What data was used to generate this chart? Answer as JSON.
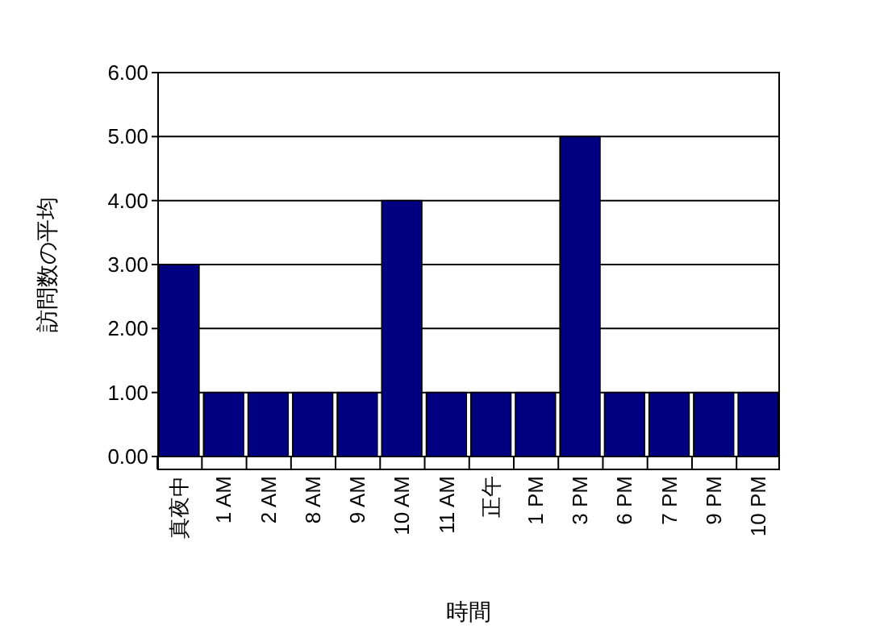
{
  "chart_data": {
    "type": "bar",
    "xlabel": "時間",
    "ylabel": "訪問数の平均",
    "categories": [
      "真夜中",
      "1 AM",
      "2 AM",
      "8 AM",
      "9 AM",
      "10 AM",
      "11 AM",
      "正午",
      "1 PM",
      "3 PM",
      "6 PM",
      "7 PM",
      "9 PM",
      "10 PM"
    ],
    "values": [
      3,
      1,
      1,
      1,
      1,
      4,
      1,
      1,
      1,
      5,
      1,
      1,
      1,
      1
    ],
    "color": "#000080",
    "ylim": [
      0,
      6
    ],
    "yticks": [
      {
        "value": 0,
        "label": "0.00"
      },
      {
        "value": 1,
        "label": "1.00"
      },
      {
        "value": 2,
        "label": "2.00"
      },
      {
        "value": 3,
        "label": "3.00"
      },
      {
        "value": 4,
        "label": "4.00"
      },
      {
        "value": 5,
        "label": "5.00"
      },
      {
        "value": 6,
        "label": "6.00"
      }
    ],
    "grid": "y"
  }
}
